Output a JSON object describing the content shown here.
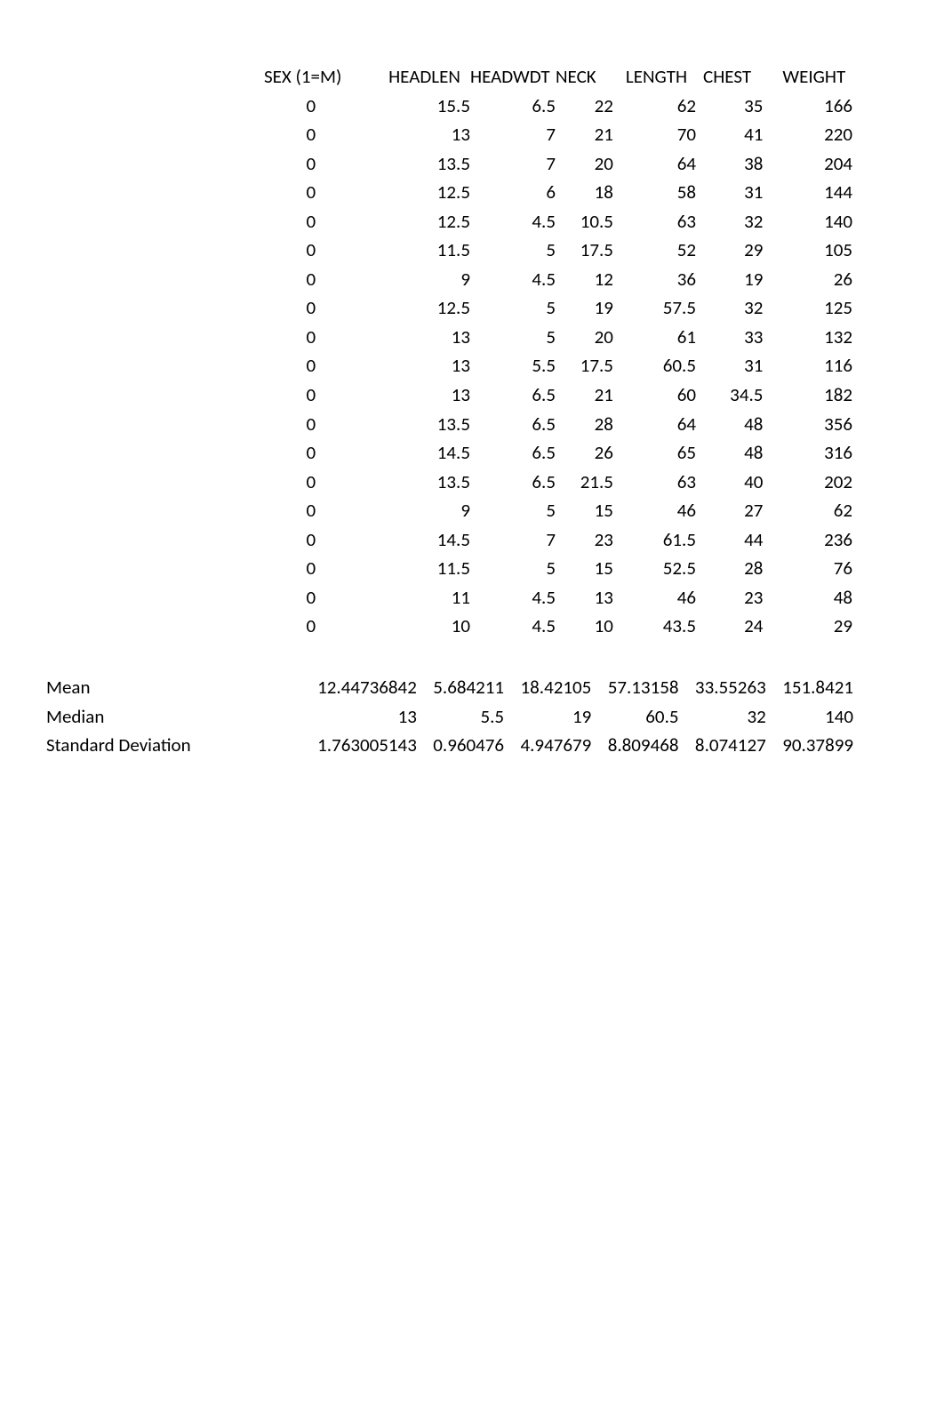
{
  "table": {
    "columns": [
      "SEX (1=M)",
      "HEADLEN",
      "HEADWDT",
      "NECK",
      "LENGTH",
      "CHEST",
      "WEIGHT"
    ],
    "rows": [
      [
        0,
        15.5,
        6.5,
        22,
        62,
        35,
        166
      ],
      [
        0,
        13,
        7,
        21,
        70,
        41,
        220
      ],
      [
        0,
        13.5,
        7,
        20,
        64,
        38,
        204
      ],
      [
        0,
        12.5,
        6,
        18,
        58,
        31,
        144
      ],
      [
        0,
        12.5,
        4.5,
        10.5,
        63,
        32,
        140
      ],
      [
        0,
        11.5,
        5,
        17.5,
        52,
        29,
        105
      ],
      [
        0,
        9,
        4.5,
        12,
        36,
        19,
        26
      ],
      [
        0,
        12.5,
        5,
        19,
        57.5,
        32,
        125
      ],
      [
        0,
        13,
        5,
        20,
        61,
        33,
        132
      ],
      [
        0,
        13,
        5.5,
        17.5,
        60.5,
        31,
        116
      ],
      [
        0,
        13,
        6.5,
        21,
        60,
        34.5,
        182
      ],
      [
        0,
        13.5,
        6.5,
        28,
        64,
        48,
        356
      ],
      [
        0,
        14.5,
        6.5,
        26,
        65,
        48,
        316
      ],
      [
        0,
        13.5,
        6.5,
        21.5,
        63,
        40,
        202
      ],
      [
        0,
        9,
        5,
        15,
        46,
        27,
        62
      ],
      [
        0,
        14.5,
        7,
        23,
        61.5,
        44,
        236
      ],
      [
        0,
        11.5,
        5,
        15,
        52.5,
        28,
        76
      ],
      [
        0,
        11,
        4.5,
        13,
        46,
        23,
        48
      ],
      [
        0,
        10,
        4.5,
        10,
        43.5,
        24,
        29
      ]
    ],
    "col_align": [
      "right",
      "right",
      "right",
      "right",
      "right",
      "right",
      "right"
    ],
    "font_size_pt": 16,
    "text_color": "#000000",
    "background_color": "#ffffff"
  },
  "stats": {
    "labels": [
      "Mean",
      "Median",
      "Standard Deviation"
    ],
    "values": [
      [
        "12.44736842",
        "5.684211",
        "18.42105",
        "57.13158",
        "33.55263",
        "151.8421"
      ],
      [
        "13",
        "5.5",
        "19",
        "60.5",
        "32",
        "140"
      ],
      [
        "1.763005143",
        "0.960476",
        "4.947679",
        "8.809468",
        "8.074127",
        "90.37899"
      ]
    ]
  }
}
